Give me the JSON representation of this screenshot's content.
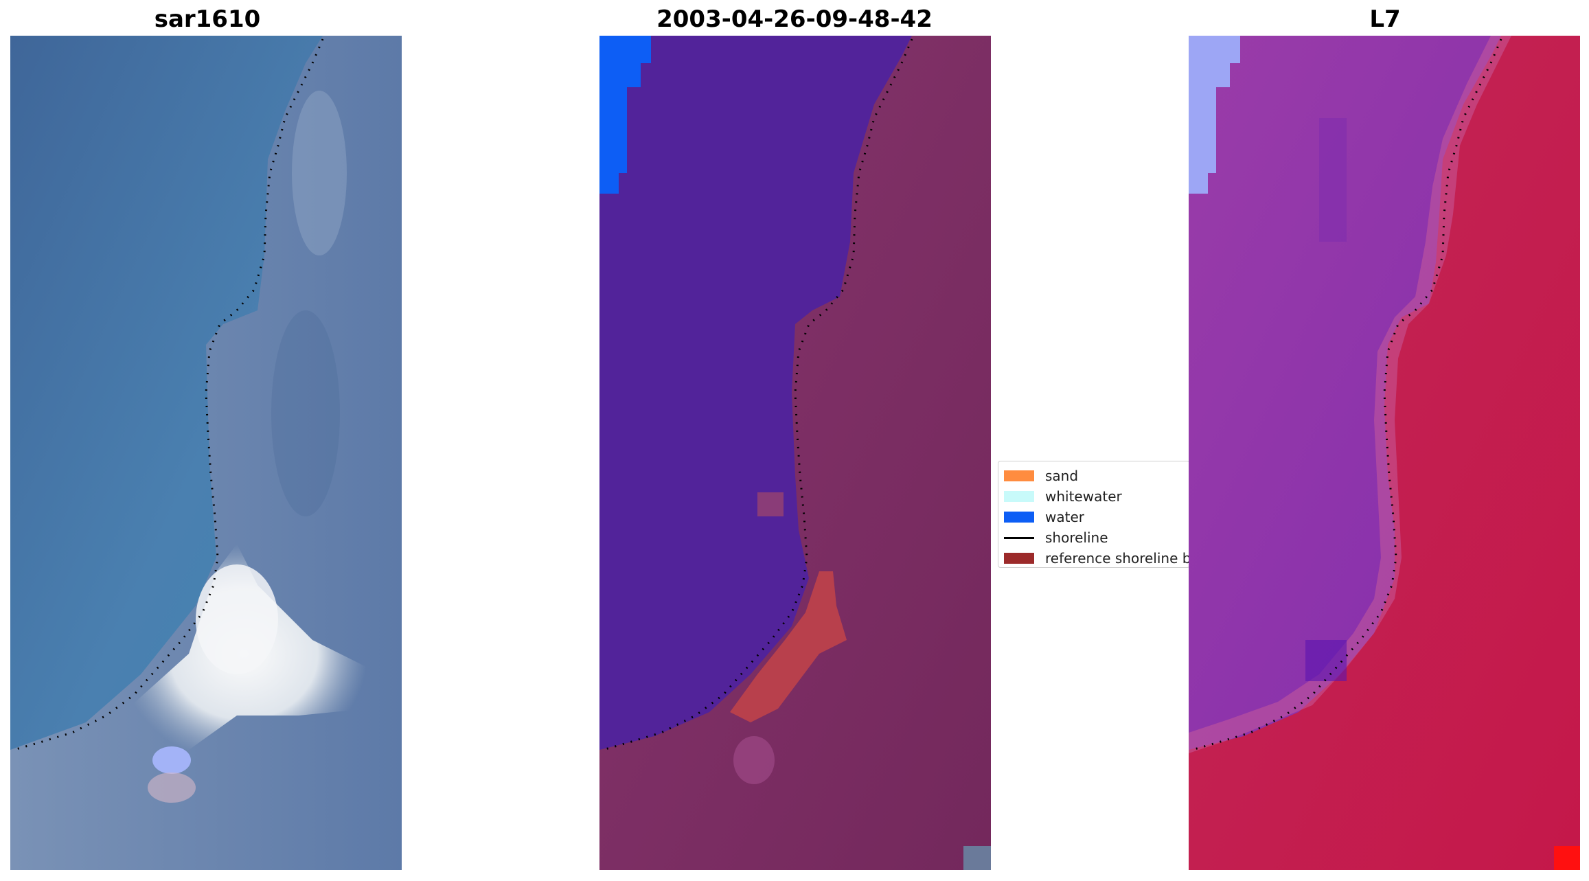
{
  "panels": [
    {
      "id": "rgb",
      "title": "sar1610"
    },
    {
      "id": "classified",
      "title": "2003-04-26-09-48-42"
    },
    {
      "id": "index",
      "title": "L7"
    }
  ],
  "legend": {
    "items": [
      {
        "label": "sand",
        "color": "#ff8c3f",
        "kind": "patch"
      },
      {
        "label": "whitewater",
        "color": "#c8fafa",
        "kind": "patch"
      },
      {
        "label": "water",
        "color": "#0d5ef5",
        "kind": "patch"
      },
      {
        "label": "shoreline",
        "color": "#000000",
        "kind": "line"
      },
      {
        "label": "reference shoreline buffer",
        "color": "#9c2a2a",
        "kind": "patch"
      }
    ]
  },
  "colors": {
    "rgb_sea": "#4a78a8",
    "rgb_land": "#6a86aa",
    "rgb_surf": "#eef0f2",
    "class_water_purple": "#52239a",
    "class_land": "#7b2f64",
    "class_buffer": "#b8404c",
    "class_water_blue": "#0d5ef5",
    "index_left": "#8a35a8",
    "index_right": "#c41c4c",
    "index_water": "#9da6f5"
  }
}
